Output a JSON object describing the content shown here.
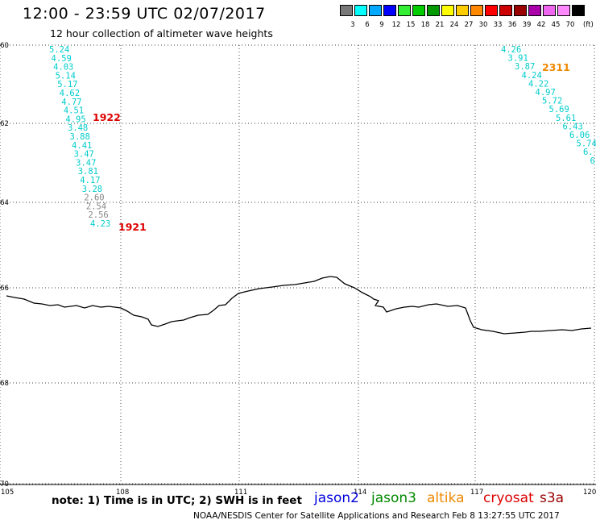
{
  "title": "12:00 - 23:59 UTC 02/07/2017",
  "subtitle": "12 hour collection of altimeter wave heights",
  "color_scale": {
    "unit": "(ft)",
    "bins": [
      {
        "label": "3",
        "color": "#787878"
      },
      {
        "label": "6",
        "color": "#00ffff"
      },
      {
        "label": "9",
        "color": "#00a8ff"
      },
      {
        "label": "12",
        "color": "#0000ff"
      },
      {
        "label": "15",
        "color": "#33ee33"
      },
      {
        "label": "18",
        "color": "#00cc00"
      },
      {
        "label": "21",
        "color": "#009900"
      },
      {
        "label": "24",
        "color": "#ffff00"
      },
      {
        "label": "27",
        "color": "#ffcc00"
      },
      {
        "label": "30",
        "color": "#ff8800"
      },
      {
        "label": "33",
        "color": "#ff0000"
      },
      {
        "label": "36",
        "color": "#cc0000"
      },
      {
        "label": "39",
        "color": "#990000"
      },
      {
        "label": "42",
        "color": "#aa00aa"
      },
      {
        "label": "45",
        "color": "#ee66ee"
      },
      {
        "label": "70",
        "color": "#ff88ff"
      },
      {
        "label": "",
        "color": "#000000"
      }
    ]
  },
  "axes": {
    "lat_labels": [
      "-60",
      "-62",
      "-64",
      "-66",
      "-68",
      "-70"
    ],
    "lon_labels": [
      "105",
      "108",
      "111",
      "114",
      "117",
      "120"
    ]
  },
  "tracks": [
    {
      "id": "1922",
      "label_color": "#dd0000",
      "values": [
        "5.24",
        "4.59",
        "4.03",
        "5.14",
        "5.17",
        "4.62",
        "4.77",
        "4.51",
        "4.95",
        "3.48",
        "3.88",
        "4.41",
        "3.47",
        "3.47",
        "3.81",
        "4.17",
        "3.28",
        "2.60",
        "2.54",
        "2.56",
        "4.23"
      ]
    },
    {
      "id": "1921",
      "label_color": "#dd0000"
    },
    {
      "id": "2311",
      "label_color": "#ee8800",
      "values": [
        "4.26",
        "3.91",
        "3.87",
        "4.24",
        "4.22",
        "4.97",
        "5.72",
        "5.69",
        "5.61",
        "6.43",
        "6.06",
        "5.74",
        "6.",
        "6"
      ]
    }
  ],
  "note": "note: 1) Time is in UTC; 2) SWH is in feet",
  "satellites": [
    {
      "name": "jason2",
      "color": "#0000dd"
    },
    {
      "name": "jason3",
      "color": "#008800"
    },
    {
      "name": "altika",
      "color": "#ee8800"
    },
    {
      "name": "cryosat",
      "color": "#dd0000"
    },
    {
      "name": "s3a",
      "color": "#990000"
    }
  ],
  "footer": "NOAA/NESDIS Center for Satellite Applications and Research    Feb  8 13:27:55 UTC 2017",
  "colors": {
    "cyan": "#00cccc",
    "gray": "#888888",
    "coast": "#000000",
    "grid": "#000000"
  }
}
